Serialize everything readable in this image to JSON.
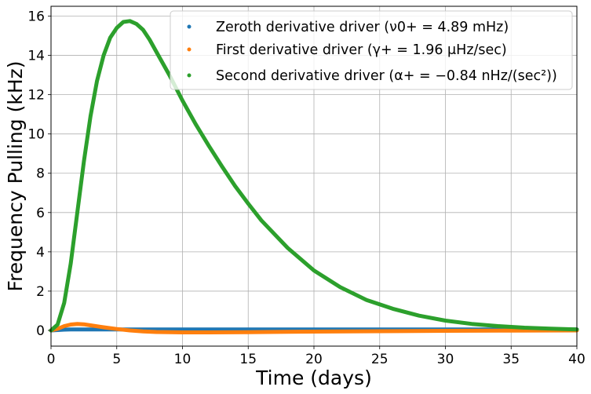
{
  "chart_data": {
    "type": "scatter",
    "xlabel": "Time (days)",
    "ylabel": "Frequency Pulling (kHz)",
    "xlim": [
      0,
      40
    ],
    "ylim": [
      -0.8,
      16.5
    ],
    "xticks": [
      0,
      5,
      10,
      15,
      20,
      25,
      30,
      35,
      40
    ],
    "yticks": [
      0,
      2,
      4,
      6,
      8,
      10,
      12,
      14,
      16
    ],
    "grid": true,
    "legend_position": "top-right",
    "colors": {
      "zeroth": "#1f77b4",
      "first": "#ff7f0e",
      "second": "#2ca02c"
    },
    "series": [
      {
        "name": "Zeroth derivative driver (ν0+ = 4.89 mHz)",
        "color": "#1f77b4",
        "x": [
          0,
          0.5,
          1,
          1.5,
          2,
          3,
          5,
          10,
          15,
          20,
          25,
          30,
          35,
          40
        ],
        "y": [
          0,
          0.02,
          0.04,
          0.05,
          0.05,
          0.05,
          0.05,
          0.05,
          0.05,
          0.05,
          0.05,
          0.05,
          0.05,
          0.05
        ]
      },
      {
        "name": "First derivative driver (γ+ = 1.96 μHz/sec)",
        "color": "#ff7f0e",
        "x": [
          0,
          0.5,
          1,
          1.5,
          2,
          2.5,
          3,
          4,
          5,
          6,
          7,
          8,
          10,
          12,
          15,
          18,
          20,
          25,
          30,
          35,
          40
        ],
        "y": [
          0,
          0.08,
          0.22,
          0.3,
          0.33,
          0.31,
          0.26,
          0.16,
          0.07,
          0.0,
          -0.05,
          -0.08,
          -0.1,
          -0.1,
          -0.09,
          -0.07,
          -0.06,
          -0.04,
          -0.02,
          -0.01,
          0.0
        ]
      },
      {
        "name": "Second derivative driver (α+ = −0.84 nHz/(sec²))",
        "color": "#2ca02c",
        "x": [
          0,
          0.5,
          1,
          1.5,
          2,
          2.5,
          3,
          3.5,
          4,
          4.5,
          5,
          5.5,
          6,
          6.5,
          7,
          7.5,
          8,
          9,
          10,
          11,
          12,
          13,
          14,
          15,
          16,
          18,
          20,
          22,
          24,
          26,
          28,
          30,
          32,
          34,
          36,
          38,
          40
        ],
        "y": [
          0,
          0.3,
          1.4,
          3.4,
          6.0,
          8.6,
          10.9,
          12.7,
          14.0,
          14.9,
          15.4,
          15.7,
          15.75,
          15.6,
          15.3,
          14.8,
          14.2,
          13.0,
          11.7,
          10.5,
          9.4,
          8.35,
          7.35,
          6.45,
          5.6,
          4.2,
          3.05,
          2.2,
          1.55,
          1.1,
          0.75,
          0.5,
          0.33,
          0.22,
          0.14,
          0.09,
          0.05
        ]
      }
    ]
  }
}
